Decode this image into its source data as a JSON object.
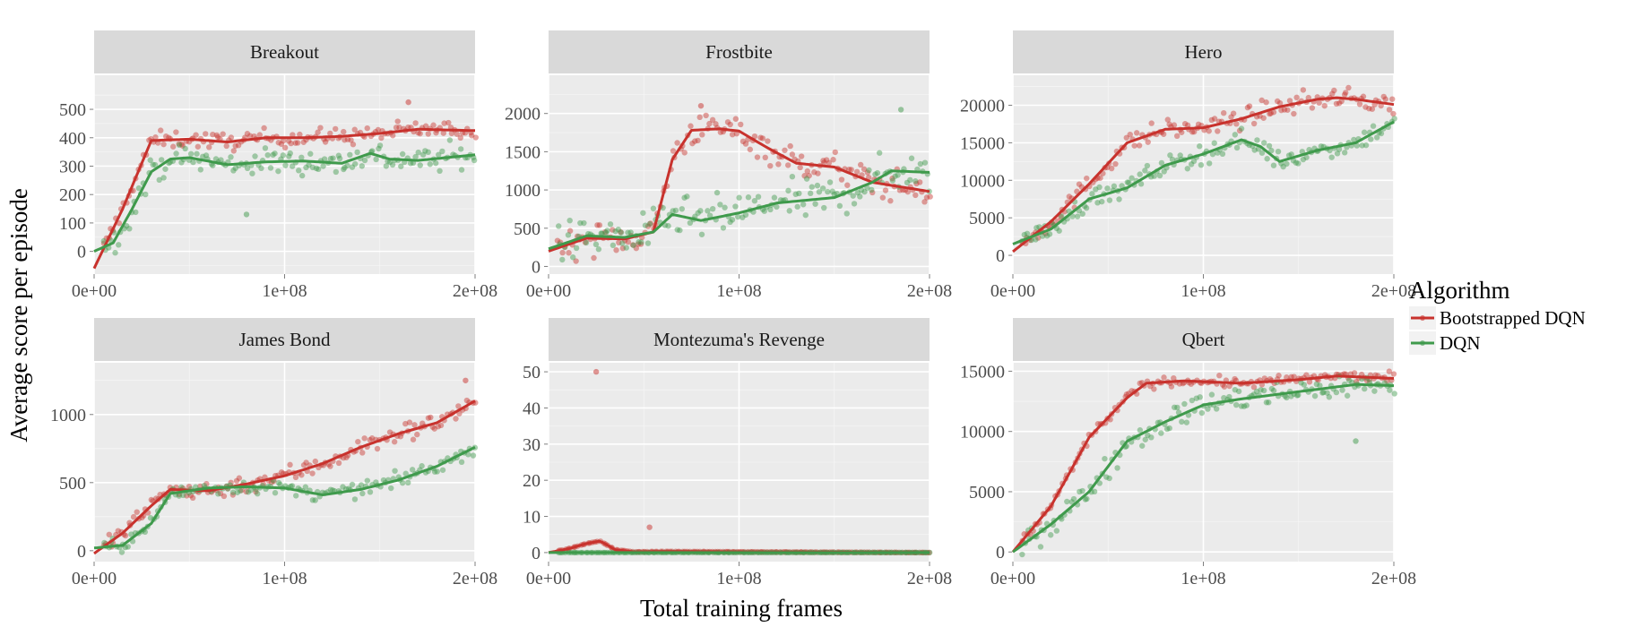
{
  "figure": {
    "xlabel": "Total training frames",
    "ylabel": "Average score per episode"
  },
  "legend": {
    "title": "Algorithm",
    "entries": [
      {
        "label": "Bootstrapped DQN",
        "color": "#c8322d"
      },
      {
        "label": "DQN",
        "color": "#3f9a4c"
      }
    ]
  },
  "chart_data": [
    {
      "type": "line",
      "title": "Breakout",
      "xlim": [
        0,
        200000000.0
      ],
      "ylim": [
        -80,
        620
      ],
      "x_ticks": [
        0,
        100000000.0,
        200000000.0
      ],
      "x_tick_labels": [
        "0e+00",
        "1e+08",
        "2e+08"
      ],
      "y_ticks": [
        0,
        100,
        200,
        300,
        400,
        500
      ],
      "y_tick_labels": [
        "0",
        "100",
        "200",
        "300",
        "400",
        "500"
      ],
      "series": [
        {
          "name": "Bootstrapped DQN",
          "color": "#c8322d",
          "smooth": [
            [
              0,
              -60
            ],
            [
              15000000.0,
              150
            ],
            [
              30000000.0,
              390
            ],
            [
              50000000.0,
              395
            ],
            [
              70000000.0,
              385
            ],
            [
              90000000.0,
              400
            ],
            [
              110000000.0,
              400
            ],
            [
              130000000.0,
              405
            ],
            [
              150000000.0,
              415
            ],
            [
              170000000.0,
              430
            ],
            [
              200000000.0,
              425
            ]
          ],
          "scatter": {
            "n": 150,
            "x_range": [
              5000000.0,
              200000000.0
            ],
            "spread": 30,
            "outliers": [
              [
                165000000.0,
                525
              ]
            ]
          }
        },
        {
          "name": "DQN",
          "color": "#3f9a4c",
          "smooth": [
            [
              0,
              0
            ],
            [
              10000000.0,
              30
            ],
            [
              20000000.0,
              150
            ],
            [
              30000000.0,
              280
            ],
            [
              40000000.0,
              325
            ],
            [
              50000000.0,
              330
            ],
            [
              70000000.0,
              305
            ],
            [
              90000000.0,
              315
            ],
            [
              110000000.0,
              318
            ],
            [
              130000000.0,
              310
            ],
            [
              145000000.0,
              345
            ],
            [
              155000000.0,
              325
            ],
            [
              170000000.0,
              320
            ],
            [
              200000000.0,
              340
            ]
          ],
          "scatter": {
            "n": 150,
            "x_range": [
              5000000.0,
              200000000.0
            ],
            "spread": 45,
            "outliers": [
              [
                80000000.0,
                130
              ]
            ]
          }
        }
      ]
    },
    {
      "type": "line",
      "title": "Frostbite",
      "xlim": [
        0,
        200000000.0
      ],
      "ylim": [
        -100,
        2500
      ],
      "x_ticks": [
        0,
        100000000.0,
        200000000.0
      ],
      "x_tick_labels": [
        "0e+00",
        "1e+08",
        "2e+08"
      ],
      "y_ticks": [
        0,
        500,
        1000,
        1500,
        2000
      ],
      "y_tick_labels": [
        "0",
        "500",
        "1000",
        "1500",
        "2000"
      ],
      "series": [
        {
          "name": "Bootstrapped DQN",
          "color": "#c8322d",
          "smooth": [
            [
              0,
              200
            ],
            [
              20000000.0,
              370
            ],
            [
              40000000.0,
              360
            ],
            [
              55000000.0,
              450
            ],
            [
              65000000.0,
              1400
            ],
            [
              75000000.0,
              1780
            ],
            [
              90000000.0,
              1800
            ],
            [
              100000000.0,
              1770
            ],
            [
              115000000.0,
              1550
            ],
            [
              130000000.0,
              1350
            ],
            [
              150000000.0,
              1300
            ],
            [
              170000000.0,
              1100
            ],
            [
              200000000.0,
              980
            ]
          ],
          "scatter": {
            "n": 150,
            "x_range": [
              5000000.0,
              200000000.0
            ],
            "spread": 200,
            "outliers": [
              [
                80000000.0,
                2100
              ]
            ]
          }
        },
        {
          "name": "DQN",
          "color": "#3f9a4c",
          "smooth": [
            [
              0,
              230
            ],
            [
              20000000.0,
              400
            ],
            [
              40000000.0,
              380
            ],
            [
              55000000.0,
              450
            ],
            [
              65000000.0,
              680
            ],
            [
              80000000.0,
              600
            ],
            [
              100000000.0,
              700
            ],
            [
              120000000.0,
              830
            ],
            [
              150000000.0,
              900
            ],
            [
              170000000.0,
              1100
            ],
            [
              180000000.0,
              1250
            ],
            [
              200000000.0,
              1230
            ]
          ],
          "scatter": {
            "n": 150,
            "x_range": [
              5000000.0,
              200000000.0
            ],
            "spread": 260,
            "outliers": [
              [
                185000000.0,
                2050
              ]
            ]
          }
        }
      ]
    },
    {
      "type": "line",
      "title": "Hero",
      "xlim": [
        0,
        200000000.0
      ],
      "ylim": [
        -2500,
        24000
      ],
      "x_ticks": [
        0,
        100000000.0,
        200000000.0
      ],
      "x_tick_labels": [
        "0e+00",
        "1e+08",
        "2e+08"
      ],
      "y_ticks": [
        0,
        5000,
        10000,
        15000,
        20000
      ],
      "y_tick_labels": [
        "0",
        "5000",
        "10000",
        "15000",
        "20000"
      ],
      "series": [
        {
          "name": "Bootstrapped DQN",
          "color": "#c8322d",
          "smooth": [
            [
              0,
              500
            ],
            [
              20000000.0,
              4500
            ],
            [
              40000000.0,
              9500
            ],
            [
              60000000.0,
              15000
            ],
            [
              80000000.0,
              16800
            ],
            [
              100000000.0,
              17000
            ],
            [
              120000000.0,
              18200
            ],
            [
              140000000.0,
              19800
            ],
            [
              160000000.0,
              20800
            ],
            [
              170000000.0,
              21000
            ],
            [
              180000000.0,
              20800
            ],
            [
              200000000.0,
              20100
            ]
          ],
          "scatter": {
            "n": 150,
            "x_range": [
              5000000.0,
              200000000.0
            ],
            "spread": 1300,
            "outliers": []
          }
        },
        {
          "name": "DQN",
          "color": "#3f9a4c",
          "smooth": [
            [
              0,
              1500
            ],
            [
              20000000.0,
              3500
            ],
            [
              40000000.0,
              7500
            ],
            [
              60000000.0,
              9000
            ],
            [
              80000000.0,
              12000
            ],
            [
              100000000.0,
              13500
            ],
            [
              120000000.0,
              15400
            ],
            [
              130000000.0,
              14500
            ],
            [
              140000000.0,
              12500
            ],
            [
              160000000.0,
              14000
            ],
            [
              180000000.0,
              15000
            ],
            [
              200000000.0,
              17800
            ]
          ],
          "scatter": {
            "n": 150,
            "x_range": [
              5000000.0,
              200000000.0
            ],
            "spread": 1300,
            "outliers": []
          }
        }
      ]
    },
    {
      "type": "line",
      "title": "James Bond",
      "xlim": [
        0,
        200000000.0
      ],
      "ylim": [
        -80,
        1380
      ],
      "x_ticks": [
        0,
        100000000.0,
        200000000.0
      ],
      "x_tick_labels": [
        "0e+00",
        "1e+08",
        "2e+08"
      ],
      "y_ticks": [
        0,
        500,
        1000
      ],
      "y_tick_labels": [
        "0",
        "500",
        "1000"
      ],
      "series": [
        {
          "name": "Bootstrapped DQN",
          "color": "#c8322d",
          "smooth": [
            [
              0,
              -20
            ],
            [
              15000000.0,
              130
            ],
            [
              30000000.0,
              330
            ],
            [
              40000000.0,
              450
            ],
            [
              60000000.0,
              440
            ],
            [
              80000000.0,
              490
            ],
            [
              100000000.0,
              550
            ],
            [
              120000000.0,
              640
            ],
            [
              140000000.0,
              760
            ],
            [
              160000000.0,
              860
            ],
            [
              180000000.0,
              940
            ],
            [
              200000000.0,
              1100
            ]
          ],
          "scatter": {
            "n": 150,
            "x_range": [
              5000000.0,
              200000000.0
            ],
            "spread": 70,
            "outliers": [
              [
                195000000.0,
                1250
              ]
            ]
          }
        },
        {
          "name": "DQN",
          "color": "#3f9a4c",
          "smooth": [
            [
              0,
              20
            ],
            [
              15000000.0,
              40
            ],
            [
              30000000.0,
              200
            ],
            [
              40000000.0,
              420
            ],
            [
              60000000.0,
              460
            ],
            [
              80000000.0,
              470
            ],
            [
              100000000.0,
              460
            ],
            [
              120000000.0,
              410
            ],
            [
              140000000.0,
              450
            ],
            [
              160000000.0,
              520
            ],
            [
              180000000.0,
              620
            ],
            [
              200000000.0,
              760
            ]
          ],
          "scatter": {
            "n": 150,
            "x_range": [
              5000000.0,
              200000000.0
            ],
            "spread": 50,
            "outliers": []
          }
        }
      ]
    },
    {
      "type": "line",
      "title": "Montezuma's Revenge",
      "xlim": [
        0,
        200000000.0
      ],
      "ylim": [
        -2.5,
        52.5
      ],
      "x_ticks": [
        0,
        100000000.0,
        200000000.0
      ],
      "x_tick_labels": [
        "0e+00",
        "1e+08",
        "2e+08"
      ],
      "y_ticks": [
        0,
        10,
        20,
        30,
        40,
        50
      ],
      "y_tick_labels": [
        "0",
        "10",
        "20",
        "30",
        "40",
        "50"
      ],
      "series": [
        {
          "name": "Bootstrapped DQN",
          "color": "#c8322d",
          "smooth": [
            [
              0,
              0
            ],
            [
              10000000.0,
              1
            ],
            [
              20000000.0,
              2.5
            ],
            [
              27000000.0,
              3.2
            ],
            [
              35000000.0,
              0.8
            ],
            [
              45000000.0,
              0.2
            ],
            [
              60000000.0,
              0.3
            ],
            [
              200000000.0,
              0
            ]
          ],
          "scatter": {
            "n": 150,
            "x_range": [
              5000000.0,
              200000000.0
            ],
            "spread": 0,
            "outliers": [
              [
                25000000.0,
                50
              ],
              [
                53000000.0,
                7
              ]
            ]
          }
        },
        {
          "name": "DQN",
          "color": "#3f9a4c",
          "smooth": [
            [
              0,
              0
            ],
            [
              200000000.0,
              0
            ]
          ],
          "scatter": {
            "n": 150,
            "x_range": [
              5000000.0,
              200000000.0
            ],
            "spread": 0,
            "outliers": []
          }
        }
      ]
    },
    {
      "type": "line",
      "title": "Qbert",
      "xlim": [
        0,
        200000000.0
      ],
      "ylim": [
        -800,
        15700
      ],
      "x_ticks": [
        0,
        100000000.0,
        200000000.0
      ],
      "x_tick_labels": [
        "0e+00",
        "1e+08",
        "2e+08"
      ],
      "y_ticks": [
        0,
        5000,
        10000,
        15000
      ],
      "y_tick_labels": [
        "0",
        "5000",
        "10000",
        "15000"
      ],
      "series": [
        {
          "name": "Bootstrapped DQN",
          "color": "#c8322d",
          "smooth": [
            [
              0,
              0
            ],
            [
              20000000.0,
              3800
            ],
            [
              40000000.0,
              9500
            ],
            [
              60000000.0,
              12800
            ],
            [
              70000000.0,
              14000
            ],
            [
              90000000.0,
              14200
            ],
            [
              120000000.0,
              14000
            ],
            [
              150000000.0,
              14300
            ],
            [
              170000000.0,
              14600
            ],
            [
              200000000.0,
              14400
            ]
          ],
          "scatter": {
            "n": 150,
            "x_range": [
              5000000.0,
              200000000.0
            ],
            "spread": 400,
            "outliers": []
          }
        },
        {
          "name": "DQN",
          "color": "#3f9a4c",
          "smooth": [
            [
              0,
              0
            ],
            [
              20000000.0,
              2300
            ],
            [
              40000000.0,
              5000
            ],
            [
              60000000.0,
              9200
            ],
            [
              80000000.0,
              10800
            ],
            [
              100000000.0,
              12200
            ],
            [
              120000000.0,
              12700
            ],
            [
              140000000.0,
              13100
            ],
            [
              160000000.0,
              13500
            ],
            [
              180000000.0,
              13900
            ],
            [
              200000000.0,
              13800
            ]
          ],
          "scatter": {
            "n": 150,
            "x_range": [
              5000000.0,
              200000000.0
            ],
            "spread": 1000,
            "outliers": [
              [
                180000000.0,
                9200
              ]
            ]
          }
        }
      ]
    }
  ]
}
